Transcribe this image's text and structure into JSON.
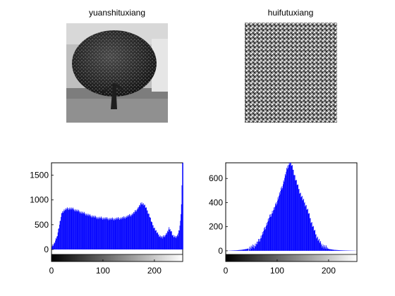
{
  "panels": {
    "original": {
      "title": "yuanshituxiang",
      "image_icon": "grayscale-tree-photo"
    },
    "restored": {
      "title": "huifutuxiang",
      "image_icon": "noise-texture-image"
    }
  },
  "colors": {
    "bars": "#0000ff",
    "axis": "#000000",
    "background": "#ffffff"
  },
  "chart_data": [
    {
      "type": "bar",
      "title": "",
      "xlabel": "",
      "ylabel": "",
      "xlim": [
        0,
        255
      ],
      "ylim": [
        -100,
        1750
      ],
      "xticks": [
        "0",
        "100",
        "200"
      ],
      "yticks": [
        "0",
        "500",
        "1000",
        "1500"
      ],
      "colorbar": "grayscale 0-255",
      "x": [
        0,
        5,
        10,
        15,
        20,
        25,
        30,
        35,
        40,
        45,
        50,
        55,
        60,
        65,
        70,
        75,
        80,
        85,
        90,
        95,
        100,
        105,
        110,
        115,
        120,
        125,
        130,
        135,
        140,
        145,
        150,
        155,
        160,
        165,
        170,
        175,
        180,
        185,
        190,
        195,
        200,
        205,
        210,
        215,
        220,
        225,
        228,
        232,
        235,
        238,
        242,
        245,
        248,
        250,
        252,
        254,
        255
      ],
      "values": [
        60,
        120,
        250,
        500,
        750,
        800,
        820,
        830,
        820,
        800,
        780,
        760,
        740,
        720,
        700,
        680,
        670,
        650,
        640,
        635,
        630,
        625,
        620,
        615,
        615,
        620,
        625,
        630,
        640,
        660,
        680,
        700,
        740,
        800,
        870,
        940,
        900,
        800,
        680,
        520,
        420,
        330,
        270,
        240,
        280,
        350,
        420,
        380,
        280,
        250,
        260,
        290,
        400,
        550,
        900,
        1750,
        1750
      ]
    },
    {
      "type": "bar",
      "title": "",
      "xlabel": "",
      "ylabel": "",
      "xlim": [
        0,
        255
      ],
      "ylim": [
        -30,
        730
      ],
      "xticks": [
        "0",
        "100",
        "200"
      ],
      "yticks": [
        "0",
        "200",
        "400",
        "600"
      ],
      "colorbar": "grayscale 0-255",
      "x": [
        0,
        10,
        20,
        30,
        40,
        50,
        55,
        60,
        65,
        70,
        75,
        80,
        85,
        90,
        95,
        100,
        105,
        110,
        115,
        120,
        125,
        130,
        135,
        140,
        145,
        150,
        155,
        160,
        165,
        170,
        175,
        180,
        185,
        190,
        200,
        210,
        220,
        230,
        240,
        250,
        255
      ],
      "values": [
        0,
        2,
        4,
        8,
        15,
        28,
        40,
        60,
        90,
        130,
        180,
        230,
        280,
        320,
        360,
        420,
        480,
        540,
        620,
        700,
        740,
        680,
        600,
        530,
        470,
        420,
        380,
        320,
        250,
        190,
        130,
        90,
        55,
        35,
        15,
        8,
        5,
        3,
        2,
        1,
        0
      ]
    }
  ]
}
